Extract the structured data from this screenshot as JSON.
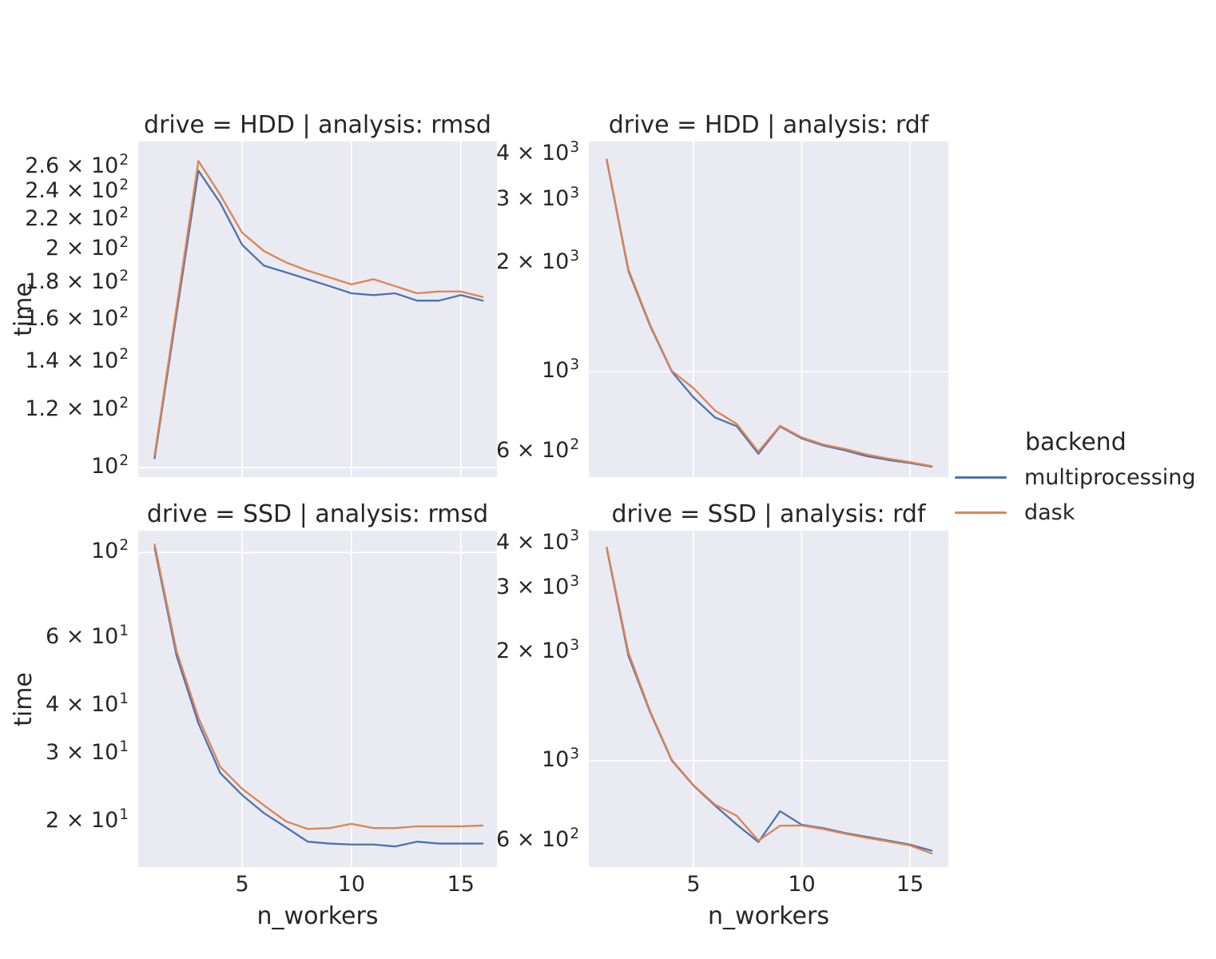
{
  "figure": {
    "background": "#ffffff",
    "axes_background": "#eaeaf2",
    "grid_color": "#ffffff",
    "text_color": "#262626"
  },
  "axes": {
    "xlabel": "n_workers",
    "ylabel": "time"
  },
  "legend": {
    "title": "backend",
    "entries": [
      {
        "label": "multiprocessing",
        "color": "#4c72b0"
      },
      {
        "label": "dask",
        "color": "#dd8452"
      }
    ]
  },
  "chart_data": {
    "type": "line",
    "xlabel": "n_workers",
    "ylabel": "time",
    "y_scale": "log",
    "grid": true,
    "legend_title": "backend",
    "series_names": [
      "multiprocessing",
      "dask"
    ],
    "series_colors": [
      "#4c72b0",
      "#dd8452"
    ],
    "x": [
      1,
      2,
      3,
      4,
      5,
      6,
      7,
      8,
      9,
      10,
      11,
      12,
      13,
      14,
      15,
      16
    ],
    "xticks": [
      5,
      10,
      15
    ],
    "panels": [
      {
        "slug": "hdd-rmsd",
        "title": "drive = HDD | analysis: rmsd",
        "drive": "HDD",
        "analysis": "rmsd",
        "xlim": [
          0.25,
          16.65
        ],
        "ylim": [
          97,
          282
        ],
        "ygrid": [
          100
        ],
        "yticks": [
          {
            "v": 260,
            "label": "2.6 × 10^2"
          },
          {
            "v": 240,
            "label": "2.4 × 10^2"
          },
          {
            "v": 220,
            "label": "2.2 × 10^2"
          },
          {
            "v": 200,
            "label": "2 × 10^2"
          },
          {
            "v": 180,
            "label": "1.8 × 10^2"
          },
          {
            "v": 160,
            "label": "1.6 × 10^2"
          },
          {
            "v": 140,
            "label": "1.4 × 10^2"
          },
          {
            "v": 120,
            "label": "1.2 × 10^2"
          },
          {
            "v": 100,
            "label": "10^2"
          }
        ],
        "series": [
          {
            "name": "multiprocessing",
            "values": [
              103,
              163,
              257,
              232,
              203,
              190,
              186,
              182,
              178,
              174,
              173,
              174,
              170,
              170,
              173,
              170
            ]
          },
          {
            "name": "dask",
            "values": [
              104,
              166,
              265,
              238,
              211,
              199,
              192,
              187,
              183,
              179,
              182,
              178,
              174,
              175,
              175,
              172
            ]
          }
        ]
      },
      {
        "slug": "hdd-rdf",
        "title": "drive = HDD | analysis: rdf",
        "drive": "HDD",
        "analysis": "rdf",
        "xlim": [
          0.17,
          16.77
        ],
        "ylim": [
          510,
          4350
        ],
        "ygrid": [
          1000
        ],
        "yticks": [
          {
            "v": 4000,
            "label": "4 × 10^3"
          },
          {
            "v": 3000,
            "label": "3 × 10^3"
          },
          {
            "v": 2000,
            "label": "2 × 10^3"
          },
          {
            "v": 1000,
            "label": "10^3"
          },
          {
            "v": 600,
            "label": "6 × 10^2"
          }
        ],
        "series": [
          {
            "name": "multiprocessing",
            "values": [
              3850,
              1900,
              1340,
              1000,
              849,
              746,
              706,
              592,
              705,
              653,
              624,
              605,
              583,
              569,
              558,
              545
            ]
          },
          {
            "name": "dask",
            "values": [
              3880,
              1920,
              1350,
              1005,
              900,
              780,
              716,
              600,
              708,
              657,
              628,
              610,
              589,
              574,
              561,
              547
            ]
          }
        ]
      },
      {
        "slug": "ssd-rmsd",
        "title": "drive = SSD | analysis: rmsd",
        "drive": "SSD",
        "analysis": "rmsd",
        "xlim": [
          0.25,
          16.65
        ],
        "ylim": [
          15.2,
          114
        ],
        "ygrid": [
          100
        ],
        "yticks": [
          {
            "v": 100,
            "label": "10^2"
          },
          {
            "v": 60,
            "label": "6 × 10^1"
          },
          {
            "v": 40,
            "label": "4 × 10^1"
          },
          {
            "v": 30,
            "label": "3 × 10^1"
          },
          {
            "v": 20,
            "label": "2 × 10^1"
          }
        ],
        "series": [
          {
            "name": "multiprocessing",
            "values": [
              103,
              54,
              36,
              26.7,
              23.4,
              21,
              19.3,
              17.7,
              17.5,
              17.4,
              17.4,
              17.2,
              17.7,
              17.5,
              17.5,
              17.5
            ]
          },
          {
            "name": "dask",
            "values": [
              105,
              55.5,
              37.2,
              27.7,
              24.3,
              22,
              20,
              19.1,
              19.2,
              19.7,
              19.2,
              19.2,
              19.4,
              19.4,
              19.4,
              19.5
            ]
          }
        ]
      },
      {
        "slug": "ssd-rdf",
        "title": "drive = SSD | analysis: rdf",
        "drive": "SSD",
        "analysis": "rdf",
        "xlim": [
          0.17,
          16.77
        ],
        "ylim": [
          507,
          4330
        ],
        "ygrid": [
          1000
        ],
        "yticks": [
          {
            "v": 4000,
            "label": "4 × 10^3"
          },
          {
            "v": 3000,
            "label": "3 × 10^3"
          },
          {
            "v": 2000,
            "label": "2 × 10^3"
          },
          {
            "v": 1000,
            "label": "10^3"
          },
          {
            "v": 600,
            "label": "6 × 10^2"
          }
        ],
        "series": [
          {
            "name": "multiprocessing",
            "values": [
              3860,
              1950,
              1360,
              1000,
              853,
              750,
              665,
              595,
              724,
              664,
              650,
              630,
              615,
              600,
              585,
              563
            ]
          },
          {
            "name": "dask",
            "values": [
              3890,
              1990,
              1370,
              1005,
              855,
              755,
              703,
              600,
              660,
              661,
              646,
              627,
              611,
              597,
              582,
              553
            ]
          }
        ]
      }
    ]
  }
}
